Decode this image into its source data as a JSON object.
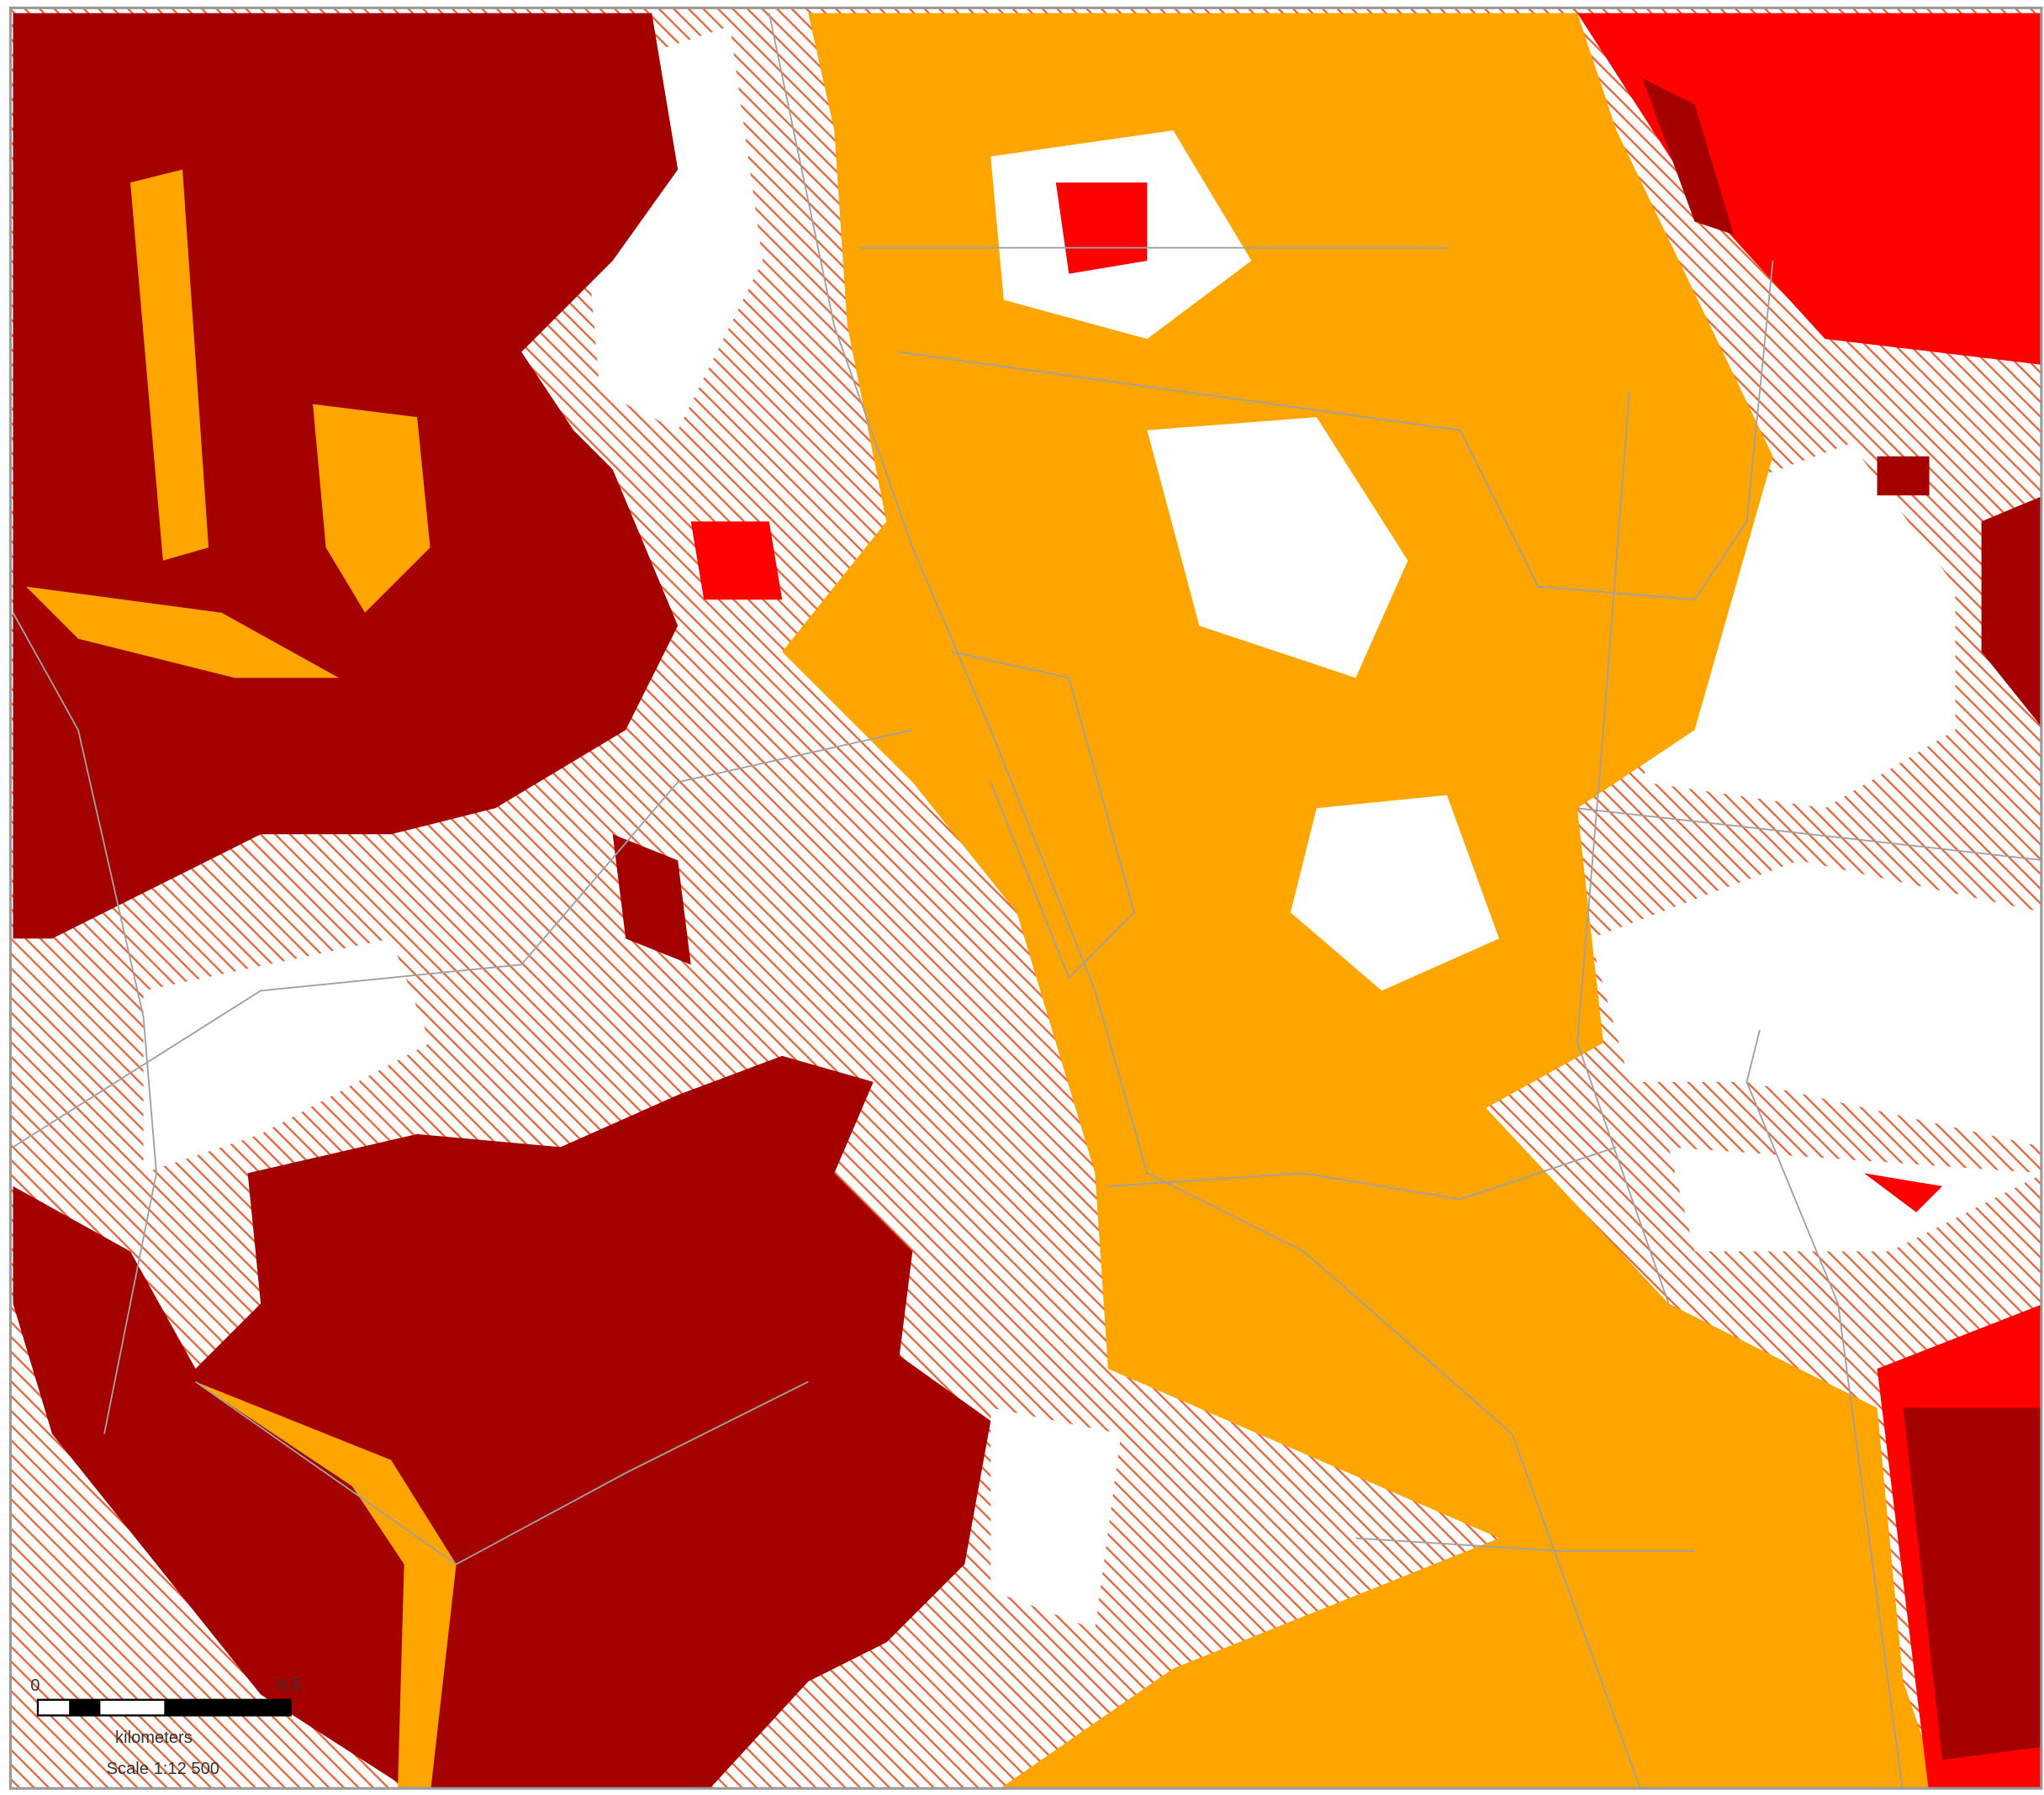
{
  "scale_bar": {
    "ticks": [
      "0",
      "0.5"
    ],
    "unit": "kilometers",
    "scale": "Scale 1:12 500"
  }
}
